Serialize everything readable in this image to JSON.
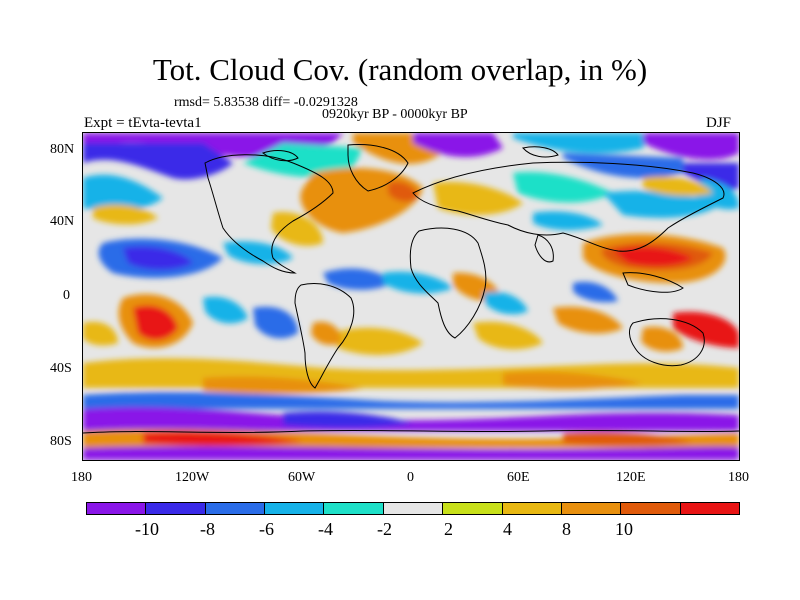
{
  "title": "Tot. Cloud Cov. (random overlap, in %)",
  "stats": "rmsd= 5.83538 diff= -0.0291328",
  "period": "0920kyr BP - 0000kyr BP",
  "experiment": "Expt = tEvta-tevta1",
  "season": "DJF",
  "y_axis_labels": [
    "80N",
    "40N",
    "0",
    "40S",
    "80S"
  ],
  "x_axis_labels": [
    "180",
    "120W",
    "60W",
    "0",
    "60E",
    "120E",
    "180"
  ],
  "colorbar": {
    "colors": [
      "#8a16e8",
      "#3a2ae8",
      "#2a6ce8",
      "#16b2e8",
      "#1ee0c8",
      "#e6e6e6",
      "#c8e01a",
      "#e8b812",
      "#e8900e",
      "#e05a0a",
      "#e81414"
    ],
    "labels": [
      "-10",
      "-8",
      "-6",
      "-4",
      "-2",
      "2",
      "4",
      "8",
      "10"
    ]
  }
}
